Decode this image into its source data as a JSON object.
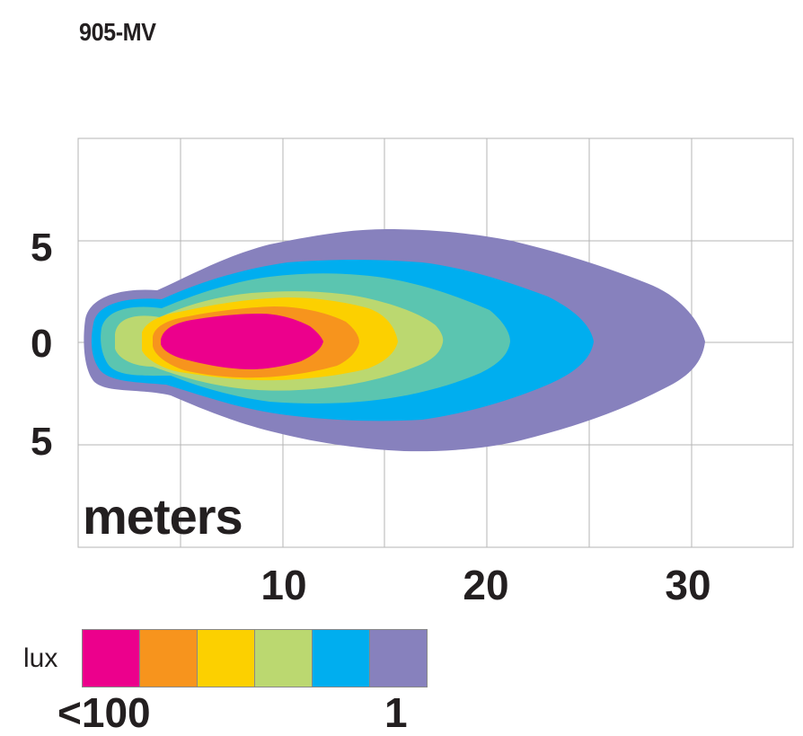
{
  "chart_data": {
    "type": "heatmap",
    "title": "905-MV",
    "unit_label": "meters",
    "x_ticks": [
      "10",
      "20",
      "30"
    ],
    "y_ticks": [
      "5",
      "0",
      "5"
    ],
    "xlim": [
      0,
      35
    ],
    "ylim": [
      -10,
      10
    ],
    "grid": true,
    "legend": {
      "label": "lux",
      "min_label": "<100",
      "max_label": "1",
      "colors": [
        "#ec008c",
        "#f7941d",
        "#fcd000",
        "#bbd870",
        "#00aeef",
        "#8781bd"
      ]
    },
    "contours": [
      {
        "color": "#8781bd",
        "extent_m": 30.5,
        "max_half_width_m": 5.5
      },
      {
        "color": "#00aeef",
        "extent_m": 25.2,
        "max_half_width_m": 3.8
      },
      {
        "color": "#5bc5b0",
        "extent_m": 21.1,
        "max_half_width_m": 3.2
      },
      {
        "color": "#bbd870",
        "extent_m": 17.9,
        "max_half_width_m": 2.5
      },
      {
        "color": "#fcd000",
        "extent_m": 15.2,
        "max_half_width_m": 2.1
      },
      {
        "color": "#f7941d",
        "extent_m": 13.9,
        "max_half_width_m": 1.7
      },
      {
        "color": "#ec008c",
        "extent_m": 12.0,
        "max_half_width_m": 1.4
      }
    ]
  }
}
